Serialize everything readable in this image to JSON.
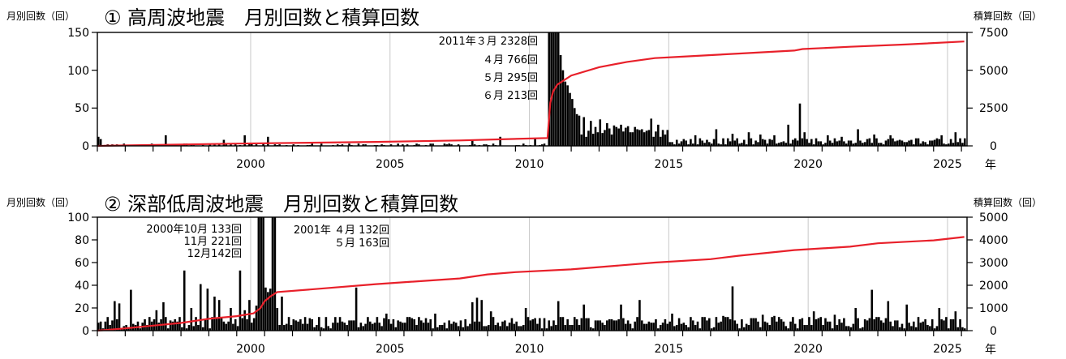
{
  "chart_data": [
    {
      "type": "bar",
      "title": "① 高周波地震　月別回数と積算回数",
      "ylabel_left": "月別回数（回）",
      "ylabel_right": "積算回数（回）",
      "xlabel": "年",
      "x_tick_labels": [
        "2000",
        "2005",
        "2010",
        "2015",
        "2020",
        "2025"
      ],
      "xlim": [
        1995.0,
        2026.2
      ],
      "ylim": [
        0,
        150
      ],
      "ylim_right": [
        0,
        7500
      ],
      "y_ticks": [
        "0",
        "50",
        "100",
        "150"
      ],
      "y_ticks_right": [
        "0",
        "2500",
        "5000",
        "7500"
      ],
      "grid": true,
      "annotations": [
        "2011年３月 2328回",
        "４月  766回",
        "５月  295回",
        "６月  213回"
      ],
      "series": [
        {
          "kind": "monthly-bar",
          "color": "#000000",
          "clipped": [
            {
              "x": "2011-03",
              "value": 2328
            },
            {
              "x": "2011-04",
              "value": 766
            },
            {
              "x": "2011-05",
              "value": 295
            },
            {
              "x": "2011-06",
              "value": 213
            }
          ],
          "peaks": [
            {
              "x": "1995-01",
              "value": 12
            },
            {
              "x": "1995-02",
              "value": 9
            },
            {
              "x": "1997-06",
              "value": 14
            },
            {
              "x": "1999-07",
              "value": 8
            },
            {
              "x": "2000-04",
              "value": 14
            },
            {
              "x": "2001-02",
              "value": 12
            },
            {
              "x": "2008-06",
              "value": 8
            },
            {
              "x": "2009-06",
              "value": 12
            },
            {
              "x": "2010-09",
              "value": 10
            },
            {
              "x": "2011-07",
              "value": 160
            },
            {
              "x": "2011-08",
              "value": 120
            },
            {
              "x": "2011-09",
              "value": 100
            },
            {
              "x": "2011-10",
              "value": 85
            },
            {
              "x": "2011-11",
              "value": 80
            },
            {
              "x": "2011-12",
              "value": 70
            },
            {
              "x": "2012-01",
              "value": 62
            },
            {
              "x": "2012-02",
              "value": 50
            },
            {
              "x": "2012-03",
              "value": 42
            },
            {
              "x": "2012-04",
              "value": 40
            },
            {
              "x": "2012-06",
              "value": 38
            },
            {
              "x": "2012-09",
              "value": 33
            },
            {
              "x": "2013-01",
              "value": 35
            },
            {
              "x": "2013-04",
              "value": 30
            },
            {
              "x": "2013-07",
              "value": 27
            },
            {
              "x": "2013-10",
              "value": 28
            },
            {
              "x": "2014-01",
              "value": 26
            },
            {
              "x": "2014-04",
              "value": 25
            },
            {
              "x": "2014-07",
              "value": 22
            },
            {
              "x": "2014-11",
              "value": 36
            },
            {
              "x": "2015-02",
              "value": 28
            },
            {
              "x": "2015-05",
              "value": 15
            },
            {
              "x": "2016-06",
              "value": 14
            },
            {
              "x": "2017-03",
              "value": 22
            },
            {
              "x": "2017-10",
              "value": 16
            },
            {
              "x": "2018-05",
              "value": 18
            },
            {
              "x": "2018-10",
              "value": 15
            },
            {
              "x": "2019-04",
              "value": 14
            },
            {
              "x": "2019-10",
              "value": 28
            },
            {
              "x": "2020-03",
              "value": 56
            },
            {
              "x": "2020-05",
              "value": 18
            },
            {
              "x": "2021-03",
              "value": 14
            },
            {
              "x": "2021-09",
              "value": 12
            },
            {
              "x": "2022-04",
              "value": 22
            },
            {
              "x": "2022-11",
              "value": 15
            },
            {
              "x": "2023-06",
              "value": 14
            },
            {
              "x": "2024-05",
              "value": 10
            },
            {
              "x": "2025-04",
              "value": 14
            },
            {
              "x": "2025-10",
              "value": 18
            }
          ]
        },
        {
          "kind": "cumulative-line",
          "axis": "right",
          "color": "#e8202a",
          "points": [
            {
              "x": 1995.0,
              "y": 0
            },
            {
              "x": 2000.0,
              "y": 150
            },
            {
              "x": 2005.0,
              "y": 260
            },
            {
              "x": 2008.0,
              "y": 360
            },
            {
              "x": 2011.15,
              "y": 520
            },
            {
              "x": 2011.25,
              "y": 2850
            },
            {
              "x": 2011.35,
              "y": 3600
            },
            {
              "x": 2011.5,
              "y": 4050
            },
            {
              "x": 2011.75,
              "y": 4350
            },
            {
              "x": 2012.0,
              "y": 4650
            },
            {
              "x": 2013.0,
              "y": 5200
            },
            {
              "x": 2014.0,
              "y": 5550
            },
            {
              "x": 2015.0,
              "y": 5800
            },
            {
              "x": 2016.0,
              "y": 5900
            },
            {
              "x": 2018.0,
              "y": 6100
            },
            {
              "x": 2020.0,
              "y": 6300
            },
            {
              "x": 2020.3,
              "y": 6400
            },
            {
              "x": 2022.0,
              "y": 6550
            },
            {
              "x": 2024.0,
              "y": 6700
            },
            {
              "x": 2026.1,
              "y": 6900
            }
          ]
        }
      ]
    },
    {
      "type": "bar",
      "title": "② 深部低周波地震　月別回数と積算回数",
      "ylabel_left": "月別回数（回）",
      "ylabel_right": "積算回数（回）",
      "xlabel": "年",
      "x_tick_labels": [
        "2000",
        "2005",
        "2010",
        "2015",
        "2020",
        "2025"
      ],
      "xlim": [
        1995.0,
        2026.2
      ],
      "ylim": [
        0,
        100
      ],
      "ylim_right": [
        0,
        5000
      ],
      "y_ticks": [
        "0",
        "20",
        "40",
        "60",
        "80",
        "100"
      ],
      "y_ticks_right": [
        "0",
        "1000",
        "2000",
        "3000",
        "4000",
        "5000"
      ],
      "grid": true,
      "annotations": [
        "2000年10月 133回",
        "11月 221回",
        "12月142回",
        "2001年 ４月 132回",
        "５月 163回"
      ],
      "series": [
        {
          "kind": "monthly-bar",
          "color": "#000000",
          "clipped": [
            {
              "x": "2000-10",
              "value": 133
            },
            {
              "x": "2000-11",
              "value": 221
            },
            {
              "x": "2000-12",
              "value": 142
            },
            {
              "x": "2001-04",
              "value": 132
            },
            {
              "x": "2001-05",
              "value": 163
            }
          ],
          "peaks": [
            {
              "x": "1995-02",
              "value": 8
            },
            {
              "x": "1995-08",
              "value": 26
            },
            {
              "x": "1995-10",
              "value": 24
            },
            {
              "x": "1996-03",
              "value": 36
            },
            {
              "x": "1996-05",
              "value": 5
            },
            {
              "x": "1997-02",
              "value": 18
            },
            {
              "x": "1997-05",
              "value": 25
            },
            {
              "x": "1997-09",
              "value": 8
            },
            {
              "x": "1998-02",
              "value": 53
            },
            {
              "x": "1998-05",
              "value": 20
            },
            {
              "x": "1998-09",
              "value": 41
            },
            {
              "x": "1998-12",
              "value": 37
            },
            {
              "x": "1999-03",
              "value": 30
            },
            {
              "x": "1999-05",
              "value": 27
            },
            {
              "x": "1999-07",
              "value": 8
            },
            {
              "x": "1999-10",
              "value": 20
            },
            {
              "x": "2000-02",
              "value": 53
            },
            {
              "x": "2000-04",
              "value": 18
            },
            {
              "x": "2000-06",
              "value": 27
            },
            {
              "x": "2000-09",
              "value": 22
            },
            {
              "x": "2001-01",
              "value": 38
            },
            {
              "x": "2001-02",
              "value": 34
            },
            {
              "x": "2001-03",
              "value": 37
            },
            {
              "x": "2001-06",
              "value": 20
            },
            {
              "x": "2001-08",
              "value": 30
            },
            {
              "x": "2001-11",
              "value": 12
            },
            {
              "x": "2004-04",
              "value": 38
            },
            {
              "x": "2005-05",
              "value": 15
            },
            {
              "x": "2006-02",
              "value": 12
            },
            {
              "x": "2007-02",
              "value": 15
            },
            {
              "x": "2008-06",
              "value": 25
            },
            {
              "x": "2008-08",
              "value": 29
            },
            {
              "x": "2008-10",
              "value": 27
            },
            {
              "x": "2009-02",
              "value": 17
            },
            {
              "x": "2010-05",
              "value": 20
            },
            {
              "x": "2010-09",
              "value": 11
            },
            {
              "x": "2011-07",
              "value": 26
            },
            {
              "x": "2012-06",
              "value": 23
            },
            {
              "x": "2013-10",
              "value": 23
            },
            {
              "x": "2014-06",
              "value": 27
            },
            {
              "x": "2015-08",
              "value": 15
            },
            {
              "x": "2017-06",
              "value": 13
            },
            {
              "x": "2017-10",
              "value": 39
            },
            {
              "x": "2018-11",
              "value": 14
            },
            {
              "x": "2019-04",
              "value": 13
            },
            {
              "x": "2020-09",
              "value": 17
            },
            {
              "x": "2021-06",
              "value": 14
            },
            {
              "x": "2022-03",
              "value": 20
            },
            {
              "x": "2022-10",
              "value": 36
            },
            {
              "x": "2023-05",
              "value": 26
            },
            {
              "x": "2024-01",
              "value": 23
            },
            {
              "x": "2025-03",
              "value": 20
            },
            {
              "x": "2025-10",
              "value": 17
            }
          ]
        },
        {
          "kind": "cumulative-line",
          "axis": "right",
          "color": "#e8202a",
          "points": [
            {
              "x": 1995.0,
              "y": 0
            },
            {
              "x": 1996.0,
              "y": 100
            },
            {
              "x": 1997.0,
              "y": 220
            },
            {
              "x": 1998.0,
              "y": 340
            },
            {
              "x": 1999.0,
              "y": 520
            },
            {
              "x": 2000.0,
              "y": 640
            },
            {
              "x": 2000.6,
              "y": 760
            },
            {
              "x": 2000.85,
              "y": 990
            },
            {
              "x": 2001.0,
              "y": 1300
            },
            {
              "x": 2001.2,
              "y": 1500
            },
            {
              "x": 2001.45,
              "y": 1700
            },
            {
              "x": 2003.0,
              "y": 1850
            },
            {
              "x": 2005.0,
              "y": 2050
            },
            {
              "x": 2008.0,
              "y": 2300
            },
            {
              "x": 2009.0,
              "y": 2480
            },
            {
              "x": 2010.0,
              "y": 2580
            },
            {
              "x": 2012.0,
              "y": 2700
            },
            {
              "x": 2015.0,
              "y": 3000
            },
            {
              "x": 2017.0,
              "y": 3150
            },
            {
              "x": 2018.0,
              "y": 3300
            },
            {
              "x": 2020.0,
              "y": 3550
            },
            {
              "x": 2022.0,
              "y": 3700
            },
            {
              "x": 2023.0,
              "y": 3850
            },
            {
              "x": 2025.0,
              "y": 3980
            },
            {
              "x": 2026.1,
              "y": 4130
            }
          ]
        }
      ]
    }
  ]
}
